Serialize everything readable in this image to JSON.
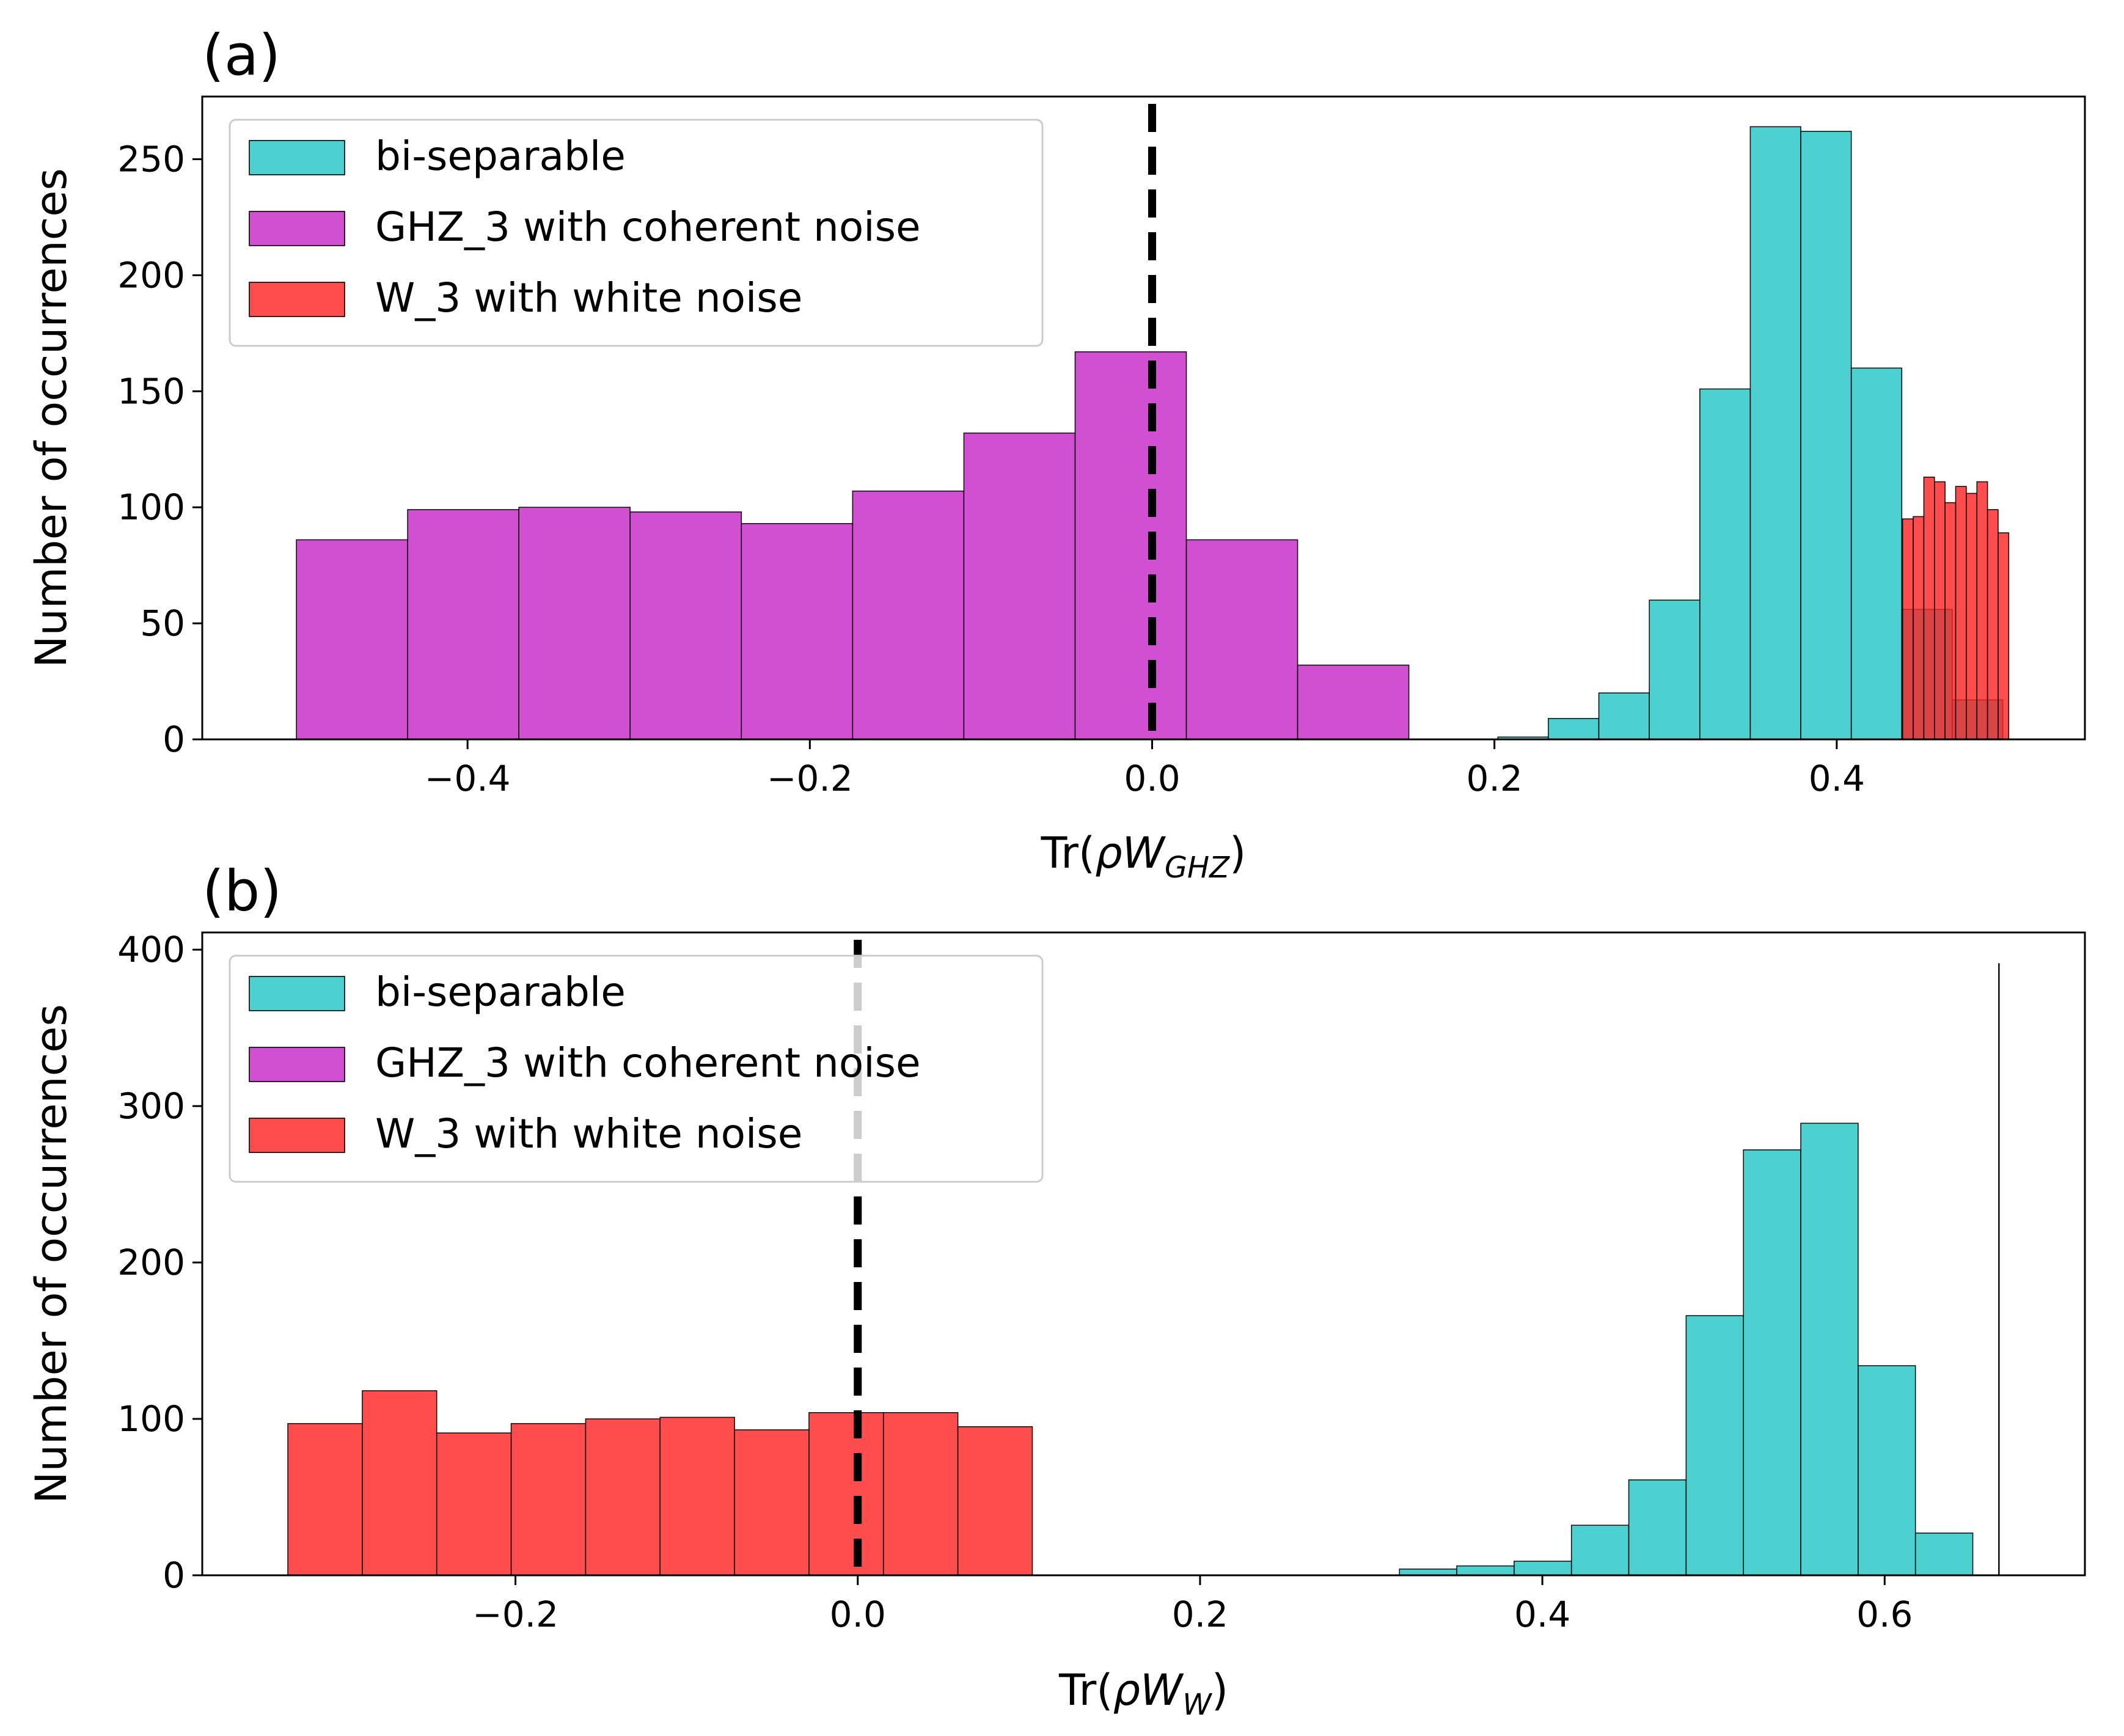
{
  "chart_data": [
    {
      "type": "histogram",
      "panel_label": "(a)",
      "xlabel_prefix": "Tr(",
      "xlabel_italic": "ρW",
      "xlabel_subscript": "GHZ",
      "xlabel_suffix": ")",
      "ylabel": "Number of occurrences",
      "xlim": [
        -0.555,
        0.545
      ],
      "ylim": [
        0,
        277
      ],
      "xticks": [
        -0.4,
        -0.2,
        0.0,
        0.2,
        0.4
      ],
      "xtick_labels": [
        "−0.4",
        "−0.2",
        "0.0",
        "0.2",
        "0.4"
      ],
      "yticks": [
        0,
        50,
        100,
        150,
        200,
        250
      ],
      "ytick_labels": [
        "0",
        "50",
        "100",
        "150",
        "200",
        "250"
      ],
      "threshold_x": 0.0,
      "legend": {
        "position": "upper-left",
        "entries": [
          {
            "label": "bi-separable",
            "series": "bi_separable"
          },
          {
            "label": "GHZ_3 with coherent noise",
            "series": "ghz"
          },
          {
            "label": "W_3 with white noise",
            "series": "w"
          }
        ]
      },
      "series": [
        {
          "name": "GHZ_3 with coherent noise",
          "key": "ghz",
          "color": "#c930c9",
          "alpha": 0.85,
          "bin_edges": [
            -0.5,
            -0.435,
            -0.37,
            -0.305,
            -0.24,
            -0.175,
            -0.11,
            -0.045,
            0.02,
            0.085,
            0.15
          ],
          "counts": [
            86,
            99,
            100,
            98,
            93,
            107,
            132,
            167,
            86,
            32
          ]
        },
        {
          "name": "bi-separable",
          "key": "bi_separable",
          "color": "#2ec8c8",
          "alpha": 0.85,
          "bin_edges": [
            0.202,
            0.2315,
            0.261,
            0.2905,
            0.32,
            0.3495,
            0.379,
            0.4085,
            0.438,
            0.4675,
            0.497
          ],
          "counts": [
            1,
            9,
            20,
            60,
            151,
            264,
            262,
            160,
            56,
            17
          ]
        },
        {
          "name": "W_3 with white noise",
          "key": "w",
          "color": "#ff2020",
          "alpha": 0.8,
          "bin_edges": [
            0.4385,
            0.4447,
            0.4509,
            0.4571,
            0.4633,
            0.4695,
            0.4757,
            0.4819,
            0.4881,
            0.4943,
            0.5005
          ],
          "counts": [
            95,
            96,
            113,
            111,
            102,
            109,
            106,
            111,
            99,
            89
          ]
        }
      ]
    },
    {
      "type": "histogram",
      "panel_label": "(b)",
      "xlabel_prefix": "Tr(",
      "xlabel_italic": "ρW",
      "xlabel_subscript": "W",
      "xlabel_suffix": ")",
      "ylabel": "Number of occurrences",
      "xlim": [
        -0.383,
        0.717
      ],
      "ylim": [
        0,
        411
      ],
      "xticks": [
        -0.2,
        0.0,
        0.2,
        0.4,
        0.6
      ],
      "xtick_labels": [
        "−0.2",
        "0.0",
        "0.2",
        "0.4",
        "0.6"
      ],
      "yticks": [
        0,
        100,
        200,
        300,
        400
      ],
      "ytick_labels": [
        "0",
        "100",
        "200",
        "300",
        "400"
      ],
      "threshold_x": 0.0,
      "legend": {
        "position": "upper-left",
        "entries": [
          {
            "label": "bi-separable",
            "series": "bi_separable"
          },
          {
            "label": "GHZ_3 with coherent noise",
            "series": "ghz"
          },
          {
            "label": "W_3 with white noise",
            "series": "w"
          }
        ]
      },
      "series": [
        {
          "name": "W_3 with white noise",
          "key": "w",
          "color": "#ff2020",
          "alpha": 0.8,
          "bin_edges": [
            -0.333,
            -0.2895,
            -0.246,
            -0.2025,
            -0.159,
            -0.1155,
            -0.072,
            -0.0285,
            0.015,
            0.0585,
            0.102
          ],
          "counts": [
            97,
            118,
            91,
            97,
            100,
            101,
            93,
            104,
            104,
            95
          ]
        },
        {
          "name": "bi-separable",
          "key": "bi_separable",
          "color": "#2ec8c8",
          "alpha": 0.85,
          "bin_edges": [
            0.3165,
            0.35,
            0.3835,
            0.417,
            0.4505,
            0.484,
            0.5175,
            0.551,
            0.5845,
            0.618,
            0.6515
          ],
          "counts": [
            4,
            6,
            9,
            32,
            61,
            166,
            272,
            289,
            134,
            27
          ]
        },
        {
          "name": "GHZ_3 with coherent noise",
          "key": "ghz",
          "color": "#c930c9",
          "alpha": 0.85,
          "bin_edges": [
            0.6666,
            0.6667
          ],
          "counts": [
            391
          ]
        }
      ]
    }
  ]
}
